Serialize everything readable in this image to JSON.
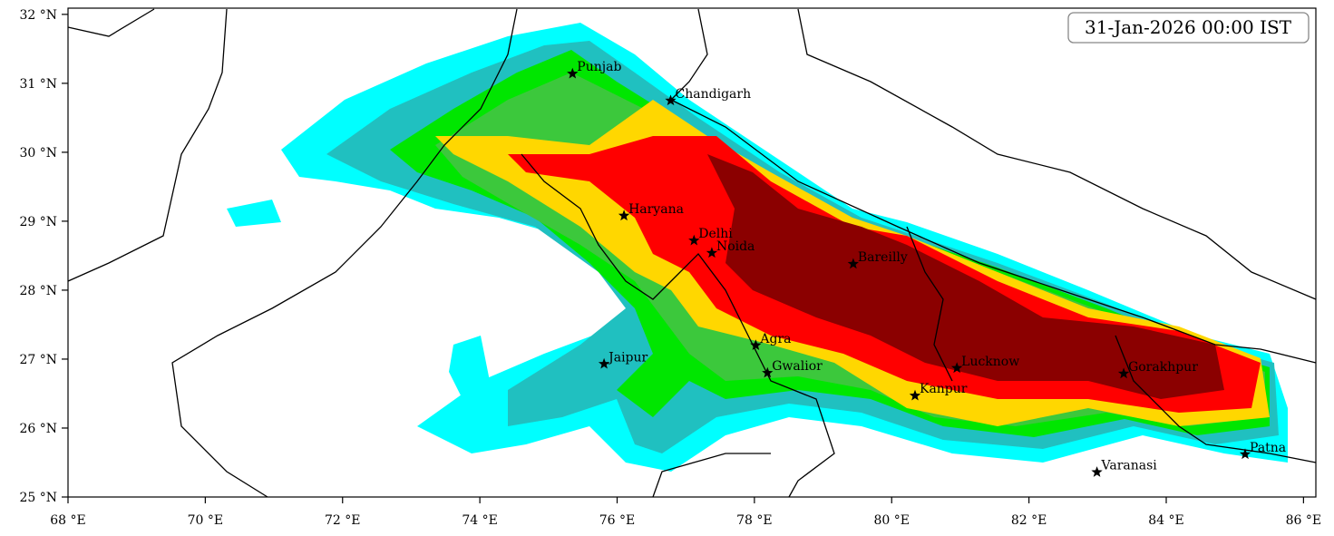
{
  "map": {
    "timestamp": "31-Jan-2026 00:00 IST",
    "xlim": [
      68,
      86.18
    ],
    "ylim": [
      25,
      32.09
    ],
    "xticks": [
      {
        "value": 68,
        "label": "68 °E"
      },
      {
        "value": 70,
        "label": "70 °E"
      },
      {
        "value": 72,
        "label": "72 °E"
      },
      {
        "value": 74,
        "label": "74 °E"
      },
      {
        "value": 76,
        "label": "76 °E"
      },
      {
        "value": 78,
        "label": "78 °E"
      },
      {
        "value": 80,
        "label": "80 °E"
      },
      {
        "value": 82,
        "label": "82 °E"
      },
      {
        "value": 84,
        "label": "84 °E"
      },
      {
        "value": 86,
        "label": "86 °E"
      }
    ],
    "yticks": [
      {
        "value": 25,
        "label": "25 °N"
      },
      {
        "value": 26,
        "label": "26 °N"
      },
      {
        "value": 27,
        "label": "27 °N"
      },
      {
        "value": 28,
        "label": "28 °N"
      },
      {
        "value": 29,
        "label": "29 °N"
      },
      {
        "value": 30,
        "label": "30 °N"
      },
      {
        "value": 31,
        "label": "31 °N"
      },
      {
        "value": 32,
        "label": "32 °N"
      }
    ],
    "cities": [
      {
        "name": "Punjab",
        "lon": 75.35,
        "lat": 31.14
      },
      {
        "name": "Chandigarh",
        "lon": 76.78,
        "lat": 30.75
      },
      {
        "name": "Haryana",
        "lon": 76.1,
        "lat": 29.08
      },
      {
        "name": "Delhi",
        "lon": 77.12,
        "lat": 28.72
      },
      {
        "name": "Noida",
        "lon": 77.38,
        "lat": 28.54
      },
      {
        "name": "Bareilly",
        "lon": 79.44,
        "lat": 28.38
      },
      {
        "name": "Agra",
        "lon": 78.02,
        "lat": 27.2
      },
      {
        "name": "Jaipur",
        "lon": 75.81,
        "lat": 26.93
      },
      {
        "name": "Gwalior",
        "lon": 78.19,
        "lat": 26.8
      },
      {
        "name": "Lucknow",
        "lon": 80.95,
        "lat": 26.87
      },
      {
        "name": "Kanpur",
        "lon": 80.34,
        "lat": 26.47
      },
      {
        "name": "Gorakhpur",
        "lon": 83.38,
        "lat": 26.79
      },
      {
        "name": "Varanasi",
        "lon": 82.99,
        "lat": 25.36
      },
      {
        "name": "Patna",
        "lon": 85.15,
        "lat": 25.62
      }
    ]
  }
}
